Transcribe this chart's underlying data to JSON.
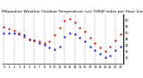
{
  "title": "Milwaukee Weather Outdoor Temperature (vs) THSW Index per Hour (Last 24 Hours)",
  "title_fontsize": 3.2,
  "background_color": "#ffffff",
  "plot_bg_color": "#ffffff",
  "grid_color": "#888888",
  "blue_color": "#0000ff",
  "red_color": "#cc0000",
  "ylim": [
    25,
    65
  ],
  "yticks": [
    30,
    35,
    40,
    45,
    50,
    55,
    60
  ],
  "ytick_labels": [
    "30",
    "35",
    "40",
    "45",
    "50",
    "55",
    "60"
  ],
  "hours": [
    0,
    1,
    2,
    3,
    4,
    5,
    6,
    7,
    8,
    9,
    10,
    11,
    12,
    13,
    14,
    15,
    16,
    17,
    18,
    19,
    20,
    21,
    22,
    23
  ],
  "blue_values": [
    50,
    50,
    50,
    49,
    48,
    45,
    44,
    42,
    40,
    38,
    37,
    39,
    47,
    50,
    49,
    46,
    43,
    39,
    36,
    33,
    30,
    32,
    36,
    39
  ],
  "red_values": [
    55,
    53,
    52,
    50,
    47,
    45,
    44,
    43,
    42,
    43,
    48,
    54,
    60,
    61,
    58,
    54,
    51,
    46,
    42,
    38,
    35,
    39,
    44,
    49
  ],
  "xtick_labels": [
    "0",
    "1",
    "2",
    "3",
    "4",
    "5",
    "6",
    "7",
    "8",
    "9",
    "10",
    "11",
    "12",
    "13",
    "14",
    "15",
    "16",
    "17",
    "18",
    "19",
    "20",
    "21",
    "22",
    "23"
  ],
  "tick_fontsize": 2.5,
  "marker_size": 1.2,
  "vgrid_positions": [
    0,
    2,
    4,
    6,
    8,
    10,
    12,
    14,
    16,
    18,
    20,
    22
  ]
}
